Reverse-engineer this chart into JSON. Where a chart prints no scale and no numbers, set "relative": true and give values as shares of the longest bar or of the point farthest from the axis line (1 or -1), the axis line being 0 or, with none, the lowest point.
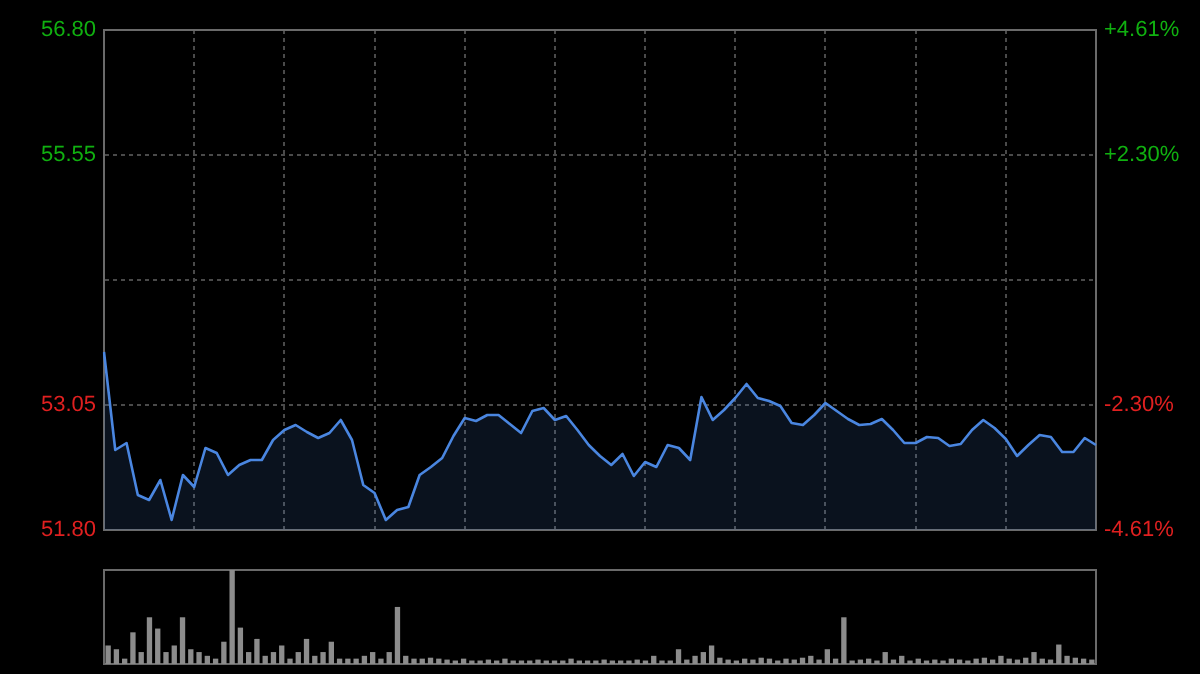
{
  "chart_data": [
    {
      "type": "area",
      "color": "#4a86e0",
      "legend": false,
      "grid": true,
      "tick_labels": "y",
      "categories": [
        null,
        null,
        null,
        null,
        null,
        null,
        null,
        null,
        null,
        null,
        null,
        null,
        null,
        null,
        null,
        null,
        null,
        null,
        null,
        null,
        null,
        null,
        null,
        null,
        null,
        null,
        null,
        null,
        null,
        null,
        null,
        null,
        null,
        null,
        null,
        null,
        null,
        null,
        null,
        null,
        null,
        null,
        null,
        null,
        null,
        null,
        null,
        null,
        null,
        null,
        null,
        null,
        null,
        null,
        null,
        null,
        null,
        null,
        null,
        null,
        null,
        null,
        null,
        null,
        null,
        null,
        null,
        null,
        null,
        null,
        null,
        null,
        null,
        null,
        null,
        null,
        null,
        null,
        null,
        null,
        null,
        null,
        null,
        null,
        null,
        null,
        null,
        null,
        null
      ],
      "values": [
        53.58,
        52.6,
        52.67,
        52.15,
        52.1,
        52.3,
        51.9,
        52.35,
        52.23,
        52.62,
        52.57,
        52.35,
        52.45,
        52.5,
        52.5,
        52.7,
        52.8,
        52.85,
        52.78,
        52.72,
        52.77,
        52.9,
        52.7,
        52.25,
        52.17,
        51.9,
        52.0,
        52.03,
        52.35,
        52.43,
        52.52,
        52.74,
        52.92,
        52.89,
        52.95,
        52.95,
        52.86,
        52.77,
        52.99,
        53.02,
        52.9,
        52.94,
        52.8,
        52.65,
        52.54,
        52.45,
        52.56,
        52.34,
        52.48,
        52.43,
        52.65,
        52.62,
        52.5,
        53.13,
        52.9,
        53.0,
        53.12,
        53.26,
        53.12,
        53.09,
        53.04,
        52.87,
        52.85,
        52.95,
        53.07,
        52.99,
        52.91,
        52.85,
        52.86,
        52.91,
        52.8,
        52.67,
        52.67,
        52.73,
        52.72,
        52.64,
        52.66,
        52.8,
        52.9,
        52.82,
        52.71,
        52.54,
        52.65,
        52.75,
        52.73,
        52.58,
        52.58,
        52.72,
        52.65
      ],
      "ylim": [
        51.8,
        56.8
      ],
      "yticks": [
        {
          "value": 51.8,
          "label": "51.80"
        },
        {
          "value": 53.05,
          "label": "53.05"
        },
        {
          "value": 54.3,
          "label": null
        },
        {
          "value": 55.55,
          "label": "55.55"
        },
        {
          "value": 56.8,
          "label": "56.80"
        }
      ],
      "y2lim": [
        -4.61,
        4.61
      ],
      "y2ticks": [
        {
          "value": -4.61,
          "label": "-4.61%"
        },
        {
          "value": -2.3,
          "label": "-2.30%"
        },
        {
          "value": 2.3,
          "label": "+2.30%"
        },
        {
          "value": 4.61,
          "label": "+4.61%"
        }
      ]
    },
    {
      "type": "bar",
      "color": "#8c8c8c",
      "relative": true,
      "legend": false,
      "grid": false,
      "categories": [
        null,
        null,
        null,
        null,
        null,
        null,
        null,
        null,
        null,
        null,
        null,
        null,
        null,
        null,
        null,
        null,
        null,
        null,
        null,
        null,
        null,
        null,
        null,
        null,
        null,
        null,
        null,
        null,
        null,
        null,
        null,
        null,
        null,
        null,
        null,
        null,
        null,
        null,
        null,
        null,
        null,
        null,
        null,
        null,
        null,
        null,
        null,
        null,
        null,
        null,
        null,
        null,
        null,
        null,
        null,
        null,
        null,
        null,
        null,
        null,
        null,
        null,
        null,
        null,
        null,
        null,
        null,
        null,
        null,
        null,
        null,
        null,
        null,
        null,
        null,
        null,
        null,
        null,
        null,
        null,
        null,
        null,
        null,
        null,
        null,
        null,
        null,
        null,
        null,
        null,
        null,
        null,
        null,
        null,
        null,
        null,
        null,
        null,
        null,
        null,
        null,
        null,
        null,
        null,
        null,
        null,
        null,
        null,
        null,
        null,
        null,
        null,
        null,
        null,
        null,
        null,
        null,
        null,
        null,
        null
      ],
      "values": [
        0.19,
        0.15,
        0.05,
        0.33,
        0.12,
        0.49,
        0.37,
        0.12,
        0.19,
        0.49,
        0.15,
        0.12,
        0.08,
        0.05,
        0.23,
        1,
        0.38,
        0.12,
        0.26,
        0.08,
        0.12,
        0.19,
        0.05,
        0.12,
        0.26,
        0.08,
        0.12,
        0.23,
        0.05,
        0.05,
        0.05,
        0.08,
        0.12,
        0.05,
        0.12,
        0.6,
        0.08,
        0.05,
        0.05,
        0.06,
        0.05,
        0.04,
        0.03,
        0.05,
        0.03,
        0.03,
        0.04,
        0.03,
        0.05,
        0.03,
        0.03,
        0.03,
        0.04,
        0.03,
        0.03,
        0.03,
        0.05,
        0.03,
        0.03,
        0.03,
        0.04,
        0.03,
        0.03,
        0.03,
        0.04,
        0.03,
        0.08,
        0.03,
        0.03,
        0.15,
        0.04,
        0.08,
        0.12,
        0.19,
        0.06,
        0.04,
        0.03,
        0.05,
        0.04,
        0.06,
        0.05,
        0.03,
        0.05,
        0.04,
        0.06,
        0.08,
        0.04,
        0.15,
        0.05,
        0.49,
        0.03,
        0.04,
        0.05,
        0.03,
        0.12,
        0.04,
        0.08,
        0.03,
        0.05,
        0.03,
        0.04,
        0.03,
        0.05,
        0.04,
        0.03,
        0.05,
        0.06,
        0.04,
        0.08,
        0.05,
        0.04,
        0.06,
        0.12,
        0.05,
        0.04,
        0.2,
        0.08,
        0.06,
        0.05,
        0.04
      ]
    }
  ]
}
